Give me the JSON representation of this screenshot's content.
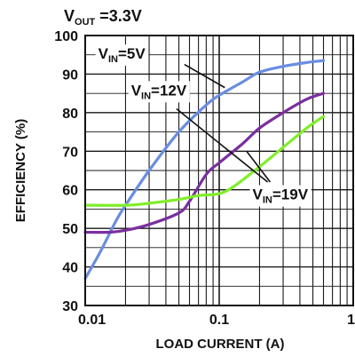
{
  "chart_data": {
    "type": "line",
    "title": {
      "main": "V",
      "sub": "OUT",
      "rest": " =3.3V"
    },
    "xlabel": "LOAD CURRENT (A)",
    "ylabel": "EFFICIENCY (%)",
    "xscale": "log",
    "xlim": [
      0.01,
      1
    ],
    "ylim": [
      30,
      100
    ],
    "x_tick_labels": [
      "0.01",
      "0.1",
      "1"
    ],
    "x_ticks": [
      0.01,
      0.1,
      1
    ],
    "y_tick_labels": [
      "30",
      "40",
      "50",
      "60",
      "70",
      "80",
      "90",
      "100"
    ],
    "y_ticks": [
      30,
      40,
      50,
      60,
      70,
      80,
      90,
      100
    ],
    "grid": true,
    "series": [
      {
        "id": "vin5",
        "label": {
          "main": "V",
          "sub": "IN",
          "rest": "=5V"
        },
        "color": "#6a8de0",
        "points": [
          [
            0.01,
            37
          ],
          [
            0.013,
            44
          ],
          [
            0.017,
            52
          ],
          [
            0.02,
            56
          ],
          [
            0.03,
            65
          ],
          [
            0.05,
            75
          ],
          [
            0.08,
            82
          ],
          [
            0.1,
            84.5
          ],
          [
            0.15,
            88
          ],
          [
            0.2,
            90.5
          ],
          [
            0.3,
            92
          ],
          [
            0.45,
            93
          ],
          [
            0.6,
            93.5
          ]
        ]
      },
      {
        "id": "vin12",
        "label": {
          "main": "V",
          "sub": "IN",
          "rest": "=12V"
        },
        "color": "#7a2f9e",
        "points": [
          [
            0.01,
            49
          ],
          [
            0.015,
            49
          ],
          [
            0.02,
            49.5
          ],
          [
            0.03,
            51
          ],
          [
            0.05,
            54
          ],
          [
            0.06,
            57
          ],
          [
            0.08,
            64
          ],
          [
            0.1,
            67
          ],
          [
            0.15,
            72
          ],
          [
            0.2,
            76
          ],
          [
            0.3,
            80
          ],
          [
            0.45,
            83.5
          ],
          [
            0.6,
            85
          ]
        ]
      },
      {
        "id": "vin19",
        "label": {
          "main": "V",
          "sub": "IN",
          "rest": "=19V"
        },
        "color": "#80ee2a",
        "points": [
          [
            0.01,
            56
          ],
          [
            0.02,
            56
          ],
          [
            0.03,
            56.5
          ],
          [
            0.05,
            57.5
          ],
          [
            0.07,
            58.5
          ],
          [
            0.1,
            59
          ],
          [
            0.13,
            61
          ],
          [
            0.2,
            66
          ],
          [
            0.3,
            71
          ],
          [
            0.45,
            76
          ],
          [
            0.6,
            79
          ]
        ]
      }
    ],
    "annotations": [
      {
        "series": "vin5",
        "text_x": 0.0125,
        "text_y": 94,
        "label_anchor": "start",
        "arrow_from": [
          0.055,
          92.5
        ],
        "arrow_to": [
          0.11,
          86.5
        ]
      },
      {
        "series": "vin12",
        "text_x": 0.022,
        "text_y": 84.5,
        "label_anchor": "start",
        "arrow_from": [
          0.048,
          81
        ],
        "arrow_to": [
          0.23,
          62
        ]
      },
      {
        "series": "vin19",
        "text_x": 0.46,
        "text_y": 57.5,
        "label_anchor": "end",
        "arrow_from": [
          0.24,
          62
        ],
        "arrow_to": [
          0.16,
          70
        ]
      }
    ]
  }
}
